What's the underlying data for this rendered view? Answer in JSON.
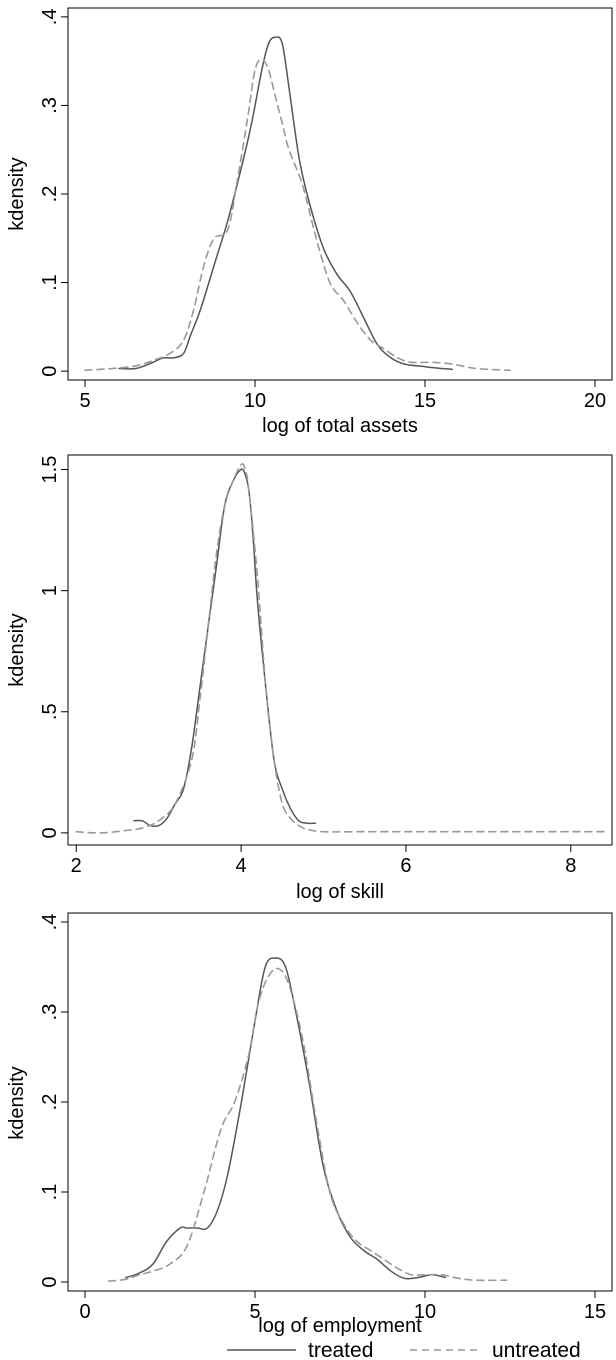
{
  "chart_data": [
    {
      "type": "line",
      "xlabel": "log of total assets",
      "ylabel": "kdensity",
      "xlim": [
        4.5,
        20.5
      ],
      "ylim": [
        -0.01,
        0.41
      ],
      "xticks": [
        5,
        10,
        15,
        20
      ],
      "xtick_labels": [
        "5",
        "10",
        "15",
        "20"
      ],
      "yticks": [
        0,
        0.1,
        0.2,
        0.3,
        0.4
      ],
      "ytick_labels": [
        "0",
        ".1",
        ".2",
        ".3",
        ".4"
      ],
      "grid": false,
      "series": [
        {
          "name": "treated",
          "color": "#555555",
          "style": "solid",
          "x": [
            6.0,
            6.5,
            7.0,
            7.3,
            7.6,
            7.9,
            8.1,
            8.4,
            8.8,
            9.2,
            9.6,
            9.9,
            10.2,
            10.4,
            10.6,
            10.8,
            11.0,
            11.3,
            11.6,
            12.0,
            12.4,
            12.8,
            13.2,
            13.6,
            14.0,
            14.4,
            15.0,
            15.5,
            15.8
          ],
          "y": [
            0.003,
            0.003,
            0.01,
            0.015,
            0.015,
            0.02,
            0.04,
            0.07,
            0.12,
            0.17,
            0.23,
            0.28,
            0.34,
            0.37,
            0.377,
            0.37,
            0.32,
            0.24,
            0.19,
            0.14,
            0.11,
            0.09,
            0.06,
            0.03,
            0.015,
            0.008,
            0.005,
            0.003,
            0.002
          ]
        },
        {
          "name": "untreated",
          "color": "#999999",
          "style": "dashed",
          "x": [
            5.0,
            5.8,
            6.5,
            7.0,
            7.5,
            7.9,
            8.2,
            8.5,
            8.8,
            9.2,
            9.5,
            9.8,
            10.0,
            10.2,
            10.4,
            10.6,
            10.8,
            11.0,
            11.4,
            11.8,
            12.2,
            12.6,
            13.0,
            13.4,
            13.8,
            14.2,
            14.6,
            15.2,
            15.8,
            16.5,
            17.5
          ],
          "y": [
            0.001,
            0.003,
            0.006,
            0.012,
            0.02,
            0.035,
            0.07,
            0.12,
            0.15,
            0.16,
            0.22,
            0.29,
            0.34,
            0.352,
            0.34,
            0.31,
            0.28,
            0.25,
            0.21,
            0.15,
            0.1,
            0.08,
            0.055,
            0.035,
            0.025,
            0.015,
            0.01,
            0.01,
            0.008,
            0.003,
            0.001
          ]
        }
      ]
    },
    {
      "type": "line",
      "xlabel": "log of skill",
      "ylabel": "kdensity",
      "xlim": [
        1.9,
        8.5
      ],
      "ylim": [
        -0.05,
        1.56
      ],
      "xticks": [
        2,
        4,
        6,
        8
      ],
      "xtick_labels": [
        "2",
        "4",
        "6",
        "8"
      ],
      "yticks": [
        0,
        0.5,
        1,
        1.5
      ],
      "ytick_labels": [
        "0",
        ".5",
        "1",
        "1.5"
      ],
      "grid": false,
      "series": [
        {
          "name": "treated",
          "color": "#555555",
          "style": "solid",
          "x": [
            2.7,
            2.8,
            2.9,
            3.0,
            3.1,
            3.2,
            3.3,
            3.4,
            3.5,
            3.6,
            3.7,
            3.8,
            3.9,
            4.0,
            4.05,
            4.1,
            4.15,
            4.2,
            4.3,
            4.4,
            4.5,
            4.6,
            4.7,
            4.8,
            4.9
          ],
          "y": [
            0.05,
            0.05,
            0.03,
            0.03,
            0.06,
            0.12,
            0.18,
            0.35,
            0.6,
            0.85,
            1.1,
            1.35,
            1.45,
            1.5,
            1.48,
            1.4,
            1.2,
            0.95,
            0.6,
            0.3,
            0.18,
            0.1,
            0.05,
            0.04,
            0.04
          ]
        },
        {
          "name": "untreated",
          "color": "#999999",
          "style": "dashed",
          "x": [
            2.0,
            2.3,
            2.6,
            2.8,
            3.0,
            3.2,
            3.4,
            3.5,
            3.6,
            3.7,
            3.8,
            3.9,
            4.0,
            4.05,
            4.1,
            4.2,
            4.3,
            4.4,
            4.5,
            4.6,
            4.7,
            4.8,
            5.0,
            5.5,
            6.0,
            7.0,
            8.0,
            8.4
          ],
          "y": [
            0.005,
            0.0,
            0.01,
            0.02,
            0.05,
            0.12,
            0.3,
            0.55,
            0.85,
            1.15,
            1.35,
            1.45,
            1.52,
            1.5,
            1.4,
            1.05,
            0.6,
            0.3,
            0.12,
            0.06,
            0.03,
            0.015,
            0.005,
            0.005,
            0.005,
            0.005,
            0.005,
            0.005
          ]
        }
      ]
    },
    {
      "type": "line",
      "xlabel": "log of employment",
      "ylabel": "kdensity",
      "xlim": [
        -0.5,
        15.5
      ],
      "ylim": [
        -0.01,
        0.41
      ],
      "xticks": [
        0,
        5,
        10,
        15
      ],
      "xtick_labels": [
        "0",
        "5",
        "10",
        "15"
      ],
      "yticks": [
        0,
        0.1,
        0.2,
        0.3,
        0.4
      ],
      "ytick_labels": [
        "0",
        ".1",
        ".2",
        ".3",
        ".4"
      ],
      "grid": false,
      "series": [
        {
          "name": "treated",
          "color": "#555555",
          "style": "solid",
          "x": [
            1.2,
            1.6,
            2.0,
            2.4,
            2.8,
            3.0,
            3.3,
            3.6,
            3.9,
            4.2,
            4.6,
            5.0,
            5.3,
            5.6,
            5.9,
            6.2,
            6.6,
            7.0,
            7.4,
            7.8,
            8.2,
            8.6,
            9.0,
            9.4,
            9.8,
            10.2,
            10.6
          ],
          "y": [
            0.005,
            0.01,
            0.02,
            0.045,
            0.06,
            0.06,
            0.06,
            0.06,
            0.08,
            0.12,
            0.2,
            0.29,
            0.35,
            0.36,
            0.35,
            0.3,
            0.22,
            0.13,
            0.08,
            0.05,
            0.035,
            0.025,
            0.012,
            0.004,
            0.005,
            0.008,
            0.005
          ]
        },
        {
          "name": "untreated",
          "color": "#999999",
          "style": "dashed",
          "x": [
            0.7,
            1.2,
            1.6,
            2.0,
            2.5,
            3.0,
            3.5,
            4.0,
            4.4,
            4.8,
            5.1,
            5.4,
            5.7,
            6.0,
            6.4,
            6.8,
            7.2,
            7.6,
            8.0,
            8.4,
            8.8,
            9.2,
            9.6,
            10.0,
            10.5,
            11.0,
            11.5,
            12.4
          ],
          "y": [
            0.001,
            0.003,
            0.008,
            0.012,
            0.02,
            0.04,
            0.1,
            0.17,
            0.2,
            0.25,
            0.31,
            0.34,
            0.348,
            0.33,
            0.27,
            0.18,
            0.1,
            0.065,
            0.045,
            0.035,
            0.025,
            0.015,
            0.008,
            0.008,
            0.008,
            0.004,
            0.002,
            0.002
          ]
        }
      ]
    }
  ],
  "legend": {
    "entries": [
      {
        "label": "treated",
        "color": "#555555",
        "style": "solid"
      },
      {
        "label": "untreated",
        "color": "#999999",
        "style": "dashed"
      }
    ]
  }
}
